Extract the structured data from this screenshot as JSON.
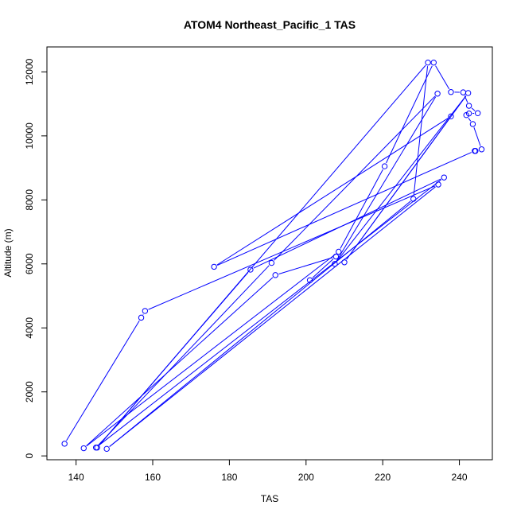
{
  "chart_data": {
    "type": "line",
    "title": "ATOM4 Northeast_Pacific_1 TAS",
    "xlabel": "TAS",
    "ylabel": "Altitude (m)",
    "xlim": [
      132.4,
      248.6
    ],
    "ylim": [
      -120,
      12780
    ],
    "xticks": [
      140,
      160,
      180,
      200,
      220,
      240
    ],
    "yticks": [
      0,
      2000,
      4000,
      6000,
      8000,
      10000,
      12000
    ],
    "grid": false,
    "series": [
      {
        "marker": "open-circle",
        "color": "#0000ff",
        "points": [
          [
            137.0,
            380
          ],
          [
            157.0,
            4320
          ],
          [
            158.0,
            4530
          ],
          [
            234.5,
            8480
          ],
          [
            148.0,
            220
          ],
          [
            228.0,
            8030
          ],
          [
            231.8,
            12290
          ],
          [
            145.5,
            260
          ],
          [
            185.5,
            5820
          ],
          [
            236.0,
            8700
          ],
          [
            145.2,
            260
          ],
          [
            191.0,
            6030
          ],
          [
            234.3,
            11320
          ],
          [
            207.5,
            6000
          ],
          [
            242.3,
            11340
          ],
          [
            210.0,
            6050
          ],
          [
            237.8,
            10610
          ],
          [
            176.0,
            5910
          ],
          [
            244.0,
            9530
          ],
          [
            244.2,
            9530
          ],
          [
            245.8,
            9580
          ],
          [
            243.5,
            10370
          ],
          [
            241.8,
            10650
          ],
          [
            242.5,
            10700
          ],
          [
            244.8,
            10710
          ],
          [
            242.5,
            10940
          ],
          [
            241.0,
            11360
          ],
          [
            237.8,
            11370
          ],
          [
            233.3,
            12290
          ],
          [
            220.5,
            9050
          ],
          [
            208.5,
            6380
          ],
          [
            142.0,
            240
          ],
          [
            192.0,
            5650
          ],
          [
            207.8,
            6230
          ],
          [
            201.0,
            5490
          ]
        ]
      }
    ],
    "colors": {
      "series": "#0000ff",
      "axis": "#000000",
      "background": "#ffffff"
    }
  }
}
